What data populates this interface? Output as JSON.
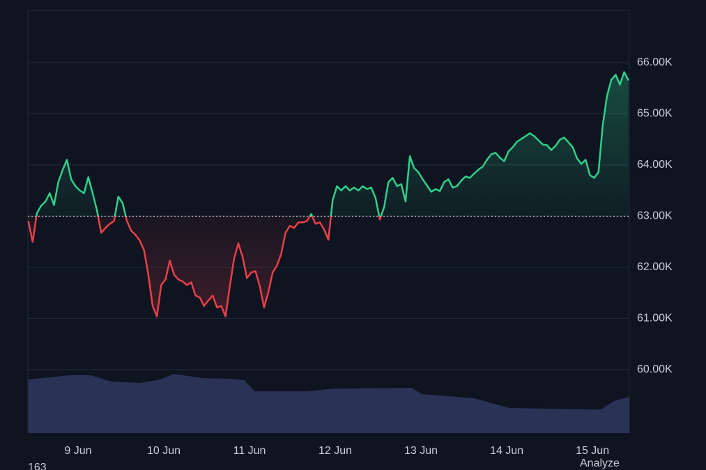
{
  "chart_data": {
    "type": "line",
    "x": [
      8.42,
      8.47,
      8.52,
      8.57,
      8.62,
      8.67,
      8.72,
      8.77,
      8.82,
      8.87,
      8.92,
      8.97,
      9.02,
      9.07,
      9.12,
      9.17,
      9.22,
      9.27,
      9.32,
      9.37,
      9.42,
      9.47,
      9.52,
      9.57,
      9.62,
      9.67,
      9.72,
      9.77,
      9.82,
      9.87,
      9.92,
      9.97,
      10.02,
      10.07,
      10.12,
      10.17,
      10.22,
      10.27,
      10.32,
      10.37,
      10.42,
      10.47,
      10.52,
      10.57,
      10.62,
      10.67,
      10.72,
      10.77,
      10.82,
      10.87,
      10.92,
      10.97,
      11.02,
      11.07,
      11.12,
      11.17,
      11.22,
      11.27,
      11.32,
      11.37,
      11.42,
      11.47,
      11.52,
      11.57,
      11.62,
      11.67,
      11.72,
      11.77,
      11.82,
      11.87,
      11.92,
      11.97,
      12.02,
      12.07,
      12.12,
      12.17,
      12.22,
      12.27,
      12.32,
      12.37,
      12.42,
      12.47,
      12.52,
      12.57,
      12.62,
      12.67,
      12.72,
      12.77,
      12.82,
      12.87,
      12.92,
      12.97,
      13.02,
      13.07,
      13.12,
      13.17,
      13.22,
      13.27,
      13.32,
      13.37,
      13.42,
      13.47,
      13.52,
      13.57,
      13.62,
      13.67,
      13.72,
      13.77,
      13.82,
      13.87,
      13.92,
      13.97,
      14.02,
      14.07,
      14.12,
      14.17,
      14.22,
      14.27,
      14.32,
      14.37,
      14.42,
      14.47,
      14.52,
      14.57,
      14.62,
      14.67,
      14.72,
      14.77,
      14.82,
      14.87,
      14.92,
      14.97,
      15.02,
      15.07,
      15.12,
      15.17,
      15.22,
      15.27,
      15.32,
      15.37,
      15.42
    ],
    "values": [
      62905,
      62497,
      63054,
      63204,
      63286,
      63449,
      63218,
      63666,
      63898,
      64102,
      63721,
      63585,
      63503,
      63449,
      63762,
      63449,
      63122,
      62674,
      62769,
      62850,
      62905,
      63381,
      63258,
      62905,
      62714,
      62633,
      62524,
      62334,
      61857,
      61245,
      61041,
      61653,
      61762,
      62130,
      61857,
      61762,
      61721,
      61653,
      61708,
      61449,
      61408,
      61245,
      61354,
      61449,
      61218,
      61245,
      61041,
      61626,
      62170,
      62469,
      62197,
      61789,
      61898,
      61925,
      61626,
      61218,
      61517,
      61898,
      62034,
      62266,
      62674,
      62810,
      62769,
      62878,
      62878,
      62905,
      63041,
      62850,
      62878,
      62742,
      62538,
      63313,
      63585,
      63503,
      63585,
      63503,
      63558,
      63503,
      63585,
      63530,
      63558,
      63354,
      62932,
      63177,
      63666,
      63748,
      63585,
      63626,
      63286,
      64170,
      63939,
      63857,
      63721,
      63598,
      63476,
      63530,
      63490,
      63666,
      63721,
      63558,
      63585,
      63694,
      63775,
      63748,
      63830,
      63911,
      63966,
      64102,
      64210,
      64238,
      64142,
      64074,
      64265,
      64346,
      64455,
      64510,
      64564,
      64619,
      64564,
      64482,
      64401,
      64387,
      64292,
      64374,
      64496,
      64537,
      64442,
      64346,
      64129,
      64020,
      64102,
      63802,
      63748,
      63857,
      64782,
      65353,
      65666,
      65762,
      65571,
      65816,
      65653
    ],
    "xlim": [
      8.415,
      15.43
    ],
    "xticks": [
      {
        "value": 9,
        "label": "9 Jun"
      },
      {
        "value": 10,
        "label": "10 Jun"
      },
      {
        "value": 11,
        "label": "11 Jun"
      },
      {
        "value": 12,
        "label": "12 Jun"
      },
      {
        "value": 13,
        "label": "13 Jun"
      },
      {
        "value": 14,
        "label": "14 Jun"
      },
      {
        "value": 15,
        "label": "15 Jun"
      }
    ],
    "ylim": [
      58760,
      67020
    ],
    "yticks": [
      {
        "value": 60000,
        "label": "60.00K"
      },
      {
        "value": 61000,
        "label": "61.00K"
      },
      {
        "value": 62000,
        "label": "62.00K"
      },
      {
        "value": 63000,
        "label": "63.00K"
      },
      {
        "value": 64000,
        "label": "64.00K"
      },
      {
        "value": 65000,
        "label": "65.00K"
      },
      {
        "value": 66000,
        "label": "66.00K"
      }
    ],
    "baseline": 63000,
    "up_color": "#2fd18a",
    "down_color": "#ea4049",
    "grid": true,
    "volume": {
      "x": [
        8.42,
        8.9,
        9.15,
        9.39,
        9.72,
        9.96,
        10.12,
        10.45,
        10.77,
        10.94,
        11.06,
        11.67,
        11.99,
        12.89,
        13.01,
        13.62,
        14.03,
        15.0,
        15.1,
        15.25,
        15.43
      ],
      "values": [
        77,
        83,
        83,
        74,
        72,
        77,
        85,
        79,
        78,
        76,
        60,
        60,
        64,
        65,
        56,
        50,
        36,
        34,
        34,
        46,
        52
      ],
      "ylim": [
        0,
        100
      ],
      "color": "#2a3256"
    },
    "annotations": [
      "163",
      "Analyze"
    ]
  }
}
